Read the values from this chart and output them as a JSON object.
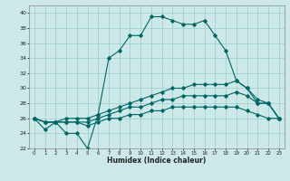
{
  "xlabel": "Humidex (Indice chaleur)",
  "bg_color": "#cce8e8",
  "grid_color": "#99cccc",
  "line_color": "#006666",
  "xlim": [
    -0.5,
    23.5
  ],
  "ylim": [
    22,
    41
  ],
  "yticks": [
    22,
    24,
    26,
    28,
    30,
    32,
    34,
    36,
    38,
    40
  ],
  "xticks": [
    0,
    1,
    2,
    3,
    4,
    5,
    6,
    7,
    8,
    9,
    10,
    11,
    12,
    13,
    14,
    15,
    16,
    17,
    18,
    19,
    20,
    21,
    22,
    23
  ],
  "line1_x": [
    0,
    1,
    2,
    3,
    4,
    5,
    6,
    7,
    8,
    9,
    10,
    11,
    12,
    13,
    14,
    15,
    16,
    17,
    18,
    19,
    20,
    21,
    22,
    23
  ],
  "line1_y": [
    26,
    24.5,
    25.5,
    24,
    24,
    22,
    26.5,
    34,
    35,
    37,
    37,
    39.5,
    39.5,
    39,
    38.5,
    38.5,
    39,
    37,
    35,
    31,
    30,
    28,
    28,
    26
  ],
  "line2_x": [
    0,
    1,
    2,
    3,
    4,
    5,
    6,
    7,
    8,
    9,
    10,
    11,
    12,
    13,
    14,
    15,
    16,
    17,
    18,
    19,
    20,
    21,
    22,
    23
  ],
  "line2_y": [
    26,
    25.5,
    25.5,
    26,
    26,
    26,
    26.5,
    27,
    27.5,
    28,
    28.5,
    29,
    29.5,
    30,
    30,
    30.5,
    30.5,
    30.5,
    30.5,
    31,
    30,
    28.5,
    28,
    26
  ],
  "line3_x": [
    0,
    1,
    2,
    3,
    4,
    5,
    6,
    7,
    8,
    9,
    10,
    11,
    12,
    13,
    14,
    15,
    16,
    17,
    18,
    19,
    20,
    21,
    22,
    23
  ],
  "line3_y": [
    26,
    25.5,
    25.5,
    25.5,
    25.5,
    25.5,
    26,
    26.5,
    27,
    27.5,
    27.5,
    28,
    28.5,
    28.5,
    29,
    29,
    29,
    29,
    29,
    29.5,
    29,
    28,
    28,
    26
  ],
  "line4_x": [
    0,
    1,
    2,
    3,
    4,
    5,
    6,
    7,
    8,
    9,
    10,
    11,
    12,
    13,
    14,
    15,
    16,
    17,
    18,
    19,
    20,
    21,
    22,
    23
  ],
  "line4_y": [
    26,
    25.5,
    25.5,
    25.5,
    25.5,
    25,
    25.5,
    26,
    26,
    26.5,
    26.5,
    27,
    27,
    27.5,
    27.5,
    27.5,
    27.5,
    27.5,
    27.5,
    27.5,
    27,
    26.5,
    26,
    26
  ]
}
